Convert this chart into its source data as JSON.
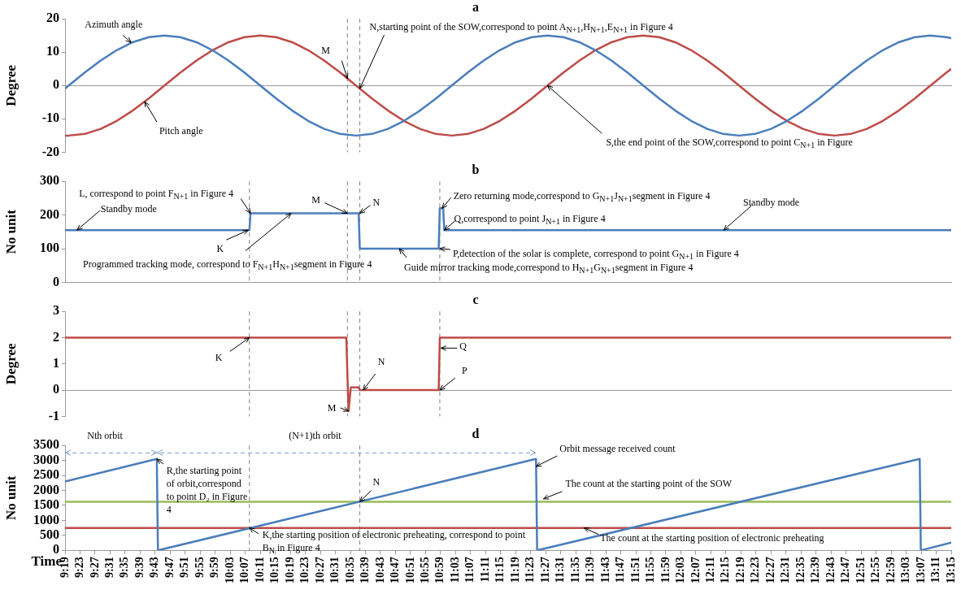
{
  "chart_data": [
    {
      "type": "line",
      "title": "a",
      "ylabel": "Degree",
      "xlim": [
        9.3167,
        13.25
      ],
      "ylim": [
        -20,
        20
      ],
      "yticks": [
        -20,
        -10,
        0,
        10,
        20
      ],
      "tick_labels": "y",
      "x": [
        9.317,
        9.333,
        9.404,
        9.475,
        9.546,
        9.617,
        9.688,
        9.758,
        9.829,
        9.9,
        9.971,
        10.042,
        10.113,
        10.183,
        10.254,
        10.325,
        10.396,
        10.467,
        10.538,
        10.608,
        10.679,
        10.75,
        10.821,
        10.892,
        10.963,
        11.033,
        11.104,
        11.175,
        11.246,
        11.317,
        11.388,
        11.458,
        11.529,
        11.6,
        11.671,
        11.742,
        11.813,
        11.883,
        11.954,
        12.025,
        12.096,
        12.167,
        12.238,
        12.308,
        12.379,
        12.45,
        12.521,
        12.592,
        12.663,
        12.733,
        12.804,
        12.875,
        12.946,
        13.017,
        13.088,
        13.158,
        13.229,
        13.25
      ],
      "series": [
        {
          "color": "#4a7ebb",
          "values": [
            -0.9,
            0,
            3.9,
            7.5,
            10.6,
            13,
            14.5,
            15,
            14.5,
            13,
            10.6,
            7.5,
            3.9,
            0,
            -3.9,
            -7.5,
            -10.6,
            -13,
            -14.5,
            -15,
            -14.5,
            -13,
            -10.6,
            -7.5,
            -3.9,
            0,
            3.9,
            7.5,
            10.6,
            13,
            14.5,
            15,
            14.5,
            13,
            10.6,
            7.5,
            3.9,
            0,
            -3.9,
            -7.5,
            -10.6,
            -13,
            -14.5,
            -15,
            -14.5,
            -13,
            -10.6,
            -7.5,
            -3.9,
            0,
            3.9,
            7.5,
            10.6,
            13,
            14.5,
            15,
            14.5,
            14.2
          ]
        },
        {
          "color": "#be4b48",
          "values": [
            -15,
            -15,
            -14.5,
            -13,
            -10.6,
            -7.5,
            -3.9,
            0,
            3.9,
            7.5,
            10.6,
            13,
            14.5,
            15,
            14.5,
            13,
            10.6,
            7.5,
            3.9,
            0,
            -3.9,
            -7.5,
            -10.6,
            -13,
            -14.5,
            -15,
            -14.5,
            -13,
            -10.6,
            -7.5,
            -3.9,
            0,
            3.9,
            7.5,
            10.6,
            13,
            14.5,
            15,
            14.5,
            13,
            10.6,
            7.5,
            3.9,
            0,
            -3.9,
            -7.5,
            -10.6,
            -13,
            -14.5,
            -15,
            -14.5,
            -13,
            -10.6,
            -7.5,
            -3.9,
            0,
            3.9,
            5
          ]
        }
      ],
      "ref_lines": [
        {
          "axis": "x",
          "value": 10.57,
          "color": "#808080",
          "line_style": "dashed"
        },
        {
          "axis": "x",
          "value": 10.625,
          "color": "#808080",
          "line_style": "dashed"
        }
      ],
      "annotations": [
        {
          "text": "Azimuth angle",
          "x": 9.61,
          "y": 12.9
        },
        {
          "text": "Pitch angle",
          "x": 9.67,
          "y": -4.8
        },
        {
          "text": "M",
          "x": 10.57,
          "y": 2.1
        },
        {
          "text": "N,starting point of the SOW,correspond to point A$_{N+1}$,H$_{N+1}$,E$_{N+1}$ in Figure 4",
          "x": 10.625,
          "y": -0.9
        },
        {
          "text": "S,the end point of the SOW,correspond to point C$_{N+1}$ in Figure",
          "x": 11.458,
          "y": 0
        }
      ]
    },
    {
      "type": "line",
      "title": "b",
      "ylabel": "No unit",
      "xlim": [
        9.3167,
        13.25
      ],
      "ylim": [
        0,
        300
      ],
      "yticks": [
        0,
        100,
        200,
        300
      ],
      "tick_labels": "y",
      "color": "#4a7ebb",
      "x": [
        9.317,
        10.135,
        10.14,
        10.62,
        10.625,
        10.975,
        10.98,
        10.995,
        11.0,
        13.25
      ],
      "values": [
        155,
        155,
        205,
        205,
        100,
        100,
        220,
        220,
        155,
        155
      ],
      "ref_lines": [
        {
          "axis": "x",
          "value": 10.135,
          "color": "#808080",
          "line_style": "dashed"
        },
        {
          "axis": "x",
          "value": 10.57,
          "color": "#808080",
          "line_style": "dashed"
        },
        {
          "axis": "x",
          "value": 10.625,
          "color": "#808080",
          "line_style": "dashed"
        },
        {
          "axis": "x",
          "value": 10.98,
          "color": "#808080",
          "line_style": "dashed"
        }
      ],
      "annotations": [
        {
          "text": "L, correspond to point F$_{N+1}$ in Figure 4",
          "x": 10.14,
          "y": 205
        },
        {
          "text": "Standby mode",
          "x": 9.37,
          "y": 155
        },
        {
          "text": "K",
          "x": 10.13,
          "y": 155
        },
        {
          "text": "Programmed tracking mode, correspond to F$_{N+1}$H$_{N+1}$segment in Figure 4",
          "x": 10.32,
          "y": 205
        },
        {
          "text": "M",
          "x": 10.57,
          "y": 205
        },
        {
          "text": "N",
          "x": 10.625,
          "y": 205
        },
        {
          "text": "Zero returning mode,correspond to G$_{N+1}$J$_{N+1}$segment in Figure 4",
          "x": 10.99,
          "y": 220
        },
        {
          "text": "Q,correspond to point J$_{N+1}$ in Figure 4",
          "x": 11.0,
          "y": 155
        },
        {
          "text": "P,detection of the solar is complete, correspond to point G$_{N+1}$ in Figure 4",
          "x": 10.98,
          "y": 100
        },
        {
          "text": "Guide mirror tracking mode,correspond to H$_{N+1}$G$_{N+1}$segment in Figure 4",
          "x": 10.8,
          "y": 100
        },
        {
          "text": "Standby mode",
          "x": 12.24,
          "y": 155
        }
      ]
    },
    {
      "type": "line",
      "title": "c",
      "ylabel": "Degree",
      "xlim": [
        9.3167,
        13.25
      ],
      "ylim": [
        -1,
        3
      ],
      "yticks": [
        -1,
        0,
        1,
        2,
        3
      ],
      "tick_labels": "y",
      "color": "#be4b48",
      "x": [
        9.317,
        10.565,
        10.575,
        10.585,
        10.62,
        10.625,
        10.975,
        10.98,
        13.25
      ],
      "values": [
        2,
        2,
        -0.8,
        0.1,
        0.1,
        0,
        0,
        2,
        2
      ],
      "ref_lines": [
        {
          "axis": "x",
          "value": 10.135,
          "color": "#808080",
          "line_style": "dashed"
        },
        {
          "axis": "x",
          "value": 10.57,
          "color": "#808080",
          "line_style": "dashed"
        },
        {
          "axis": "x",
          "value": 10.625,
          "color": "#808080",
          "line_style": "dashed"
        },
        {
          "axis": "x",
          "value": 10.98,
          "color": "#808080",
          "line_style": "dashed"
        }
      ],
      "annotations": [
        {
          "text": "K",
          "x": 10.135,
          "y": 2
        },
        {
          "text": "M",
          "x": 10.575,
          "y": -0.8
        },
        {
          "text": "N",
          "x": 10.64,
          "y": 0
        },
        {
          "text": "Q",
          "x": 10.985,
          "y": 1.6
        },
        {
          "text": "P",
          "x": 10.98,
          "y": 0
        }
      ]
    },
    {
      "type": "line",
      "title": "d",
      "xlabel": "Time",
      "ylabel": "No unit",
      "xlim": [
        9.3167,
        13.25
      ],
      "ylim": [
        0,
        3500
      ],
      "yticks": [
        0,
        500,
        1000,
        1500,
        2000,
        2500,
        3000,
        3500
      ],
      "series": [
        {
          "color": "#4a7ebb",
          "x": [
            9.317,
            9.724,
            9.729,
            11.407,
            11.412,
            13.11,
            13.115,
            13.25
          ],
          "values": [
            2300,
            3050,
            0,
            3050,
            0,
            3050,
            0,
            260
          ]
        },
        {
          "color": "#7f9cc8",
          "line_style": "dashed",
          "marker": "cross",
          "x": [
            9.317,
            9.724,
            11.407
          ],
          "values": [
            3250,
            3250,
            3250
          ]
        }
      ],
      "xticks": [
        {
          "value": 9.3167,
          "label": "9:19"
        },
        {
          "value": 9.3833,
          "label": "9:23"
        },
        {
          "value": 9.45,
          "label": "9:27"
        },
        {
          "value": 9.5167,
          "label": "9:31"
        },
        {
          "value": 9.5833,
          "label": "9:35"
        },
        {
          "value": 9.65,
          "label": "9:39"
        },
        {
          "value": 9.7167,
          "label": "9:43"
        },
        {
          "value": 9.7833,
          "label": "9:47"
        },
        {
          "value": 9.85,
          "label": "9:51"
        },
        {
          "value": 9.9167,
          "label": "9:55"
        },
        {
          "value": 9.9833,
          "label": "9:59"
        },
        {
          "value": 10.05,
          "label": "10:03"
        },
        {
          "value": 10.1167,
          "label": "10:07"
        },
        {
          "value": 10.1833,
          "label": "10:11"
        },
        {
          "value": 10.25,
          "label": "10:15"
        },
        {
          "value": 10.3167,
          "label": "10:19"
        },
        {
          "value": 10.3833,
          "label": "10:23"
        },
        {
          "value": 10.45,
          "label": "10:27"
        },
        {
          "value": 10.5167,
          "label": "10:31"
        },
        {
          "value": 10.5833,
          "label": "10:35"
        },
        {
          "value": 10.65,
          "label": "10:39"
        },
        {
          "value": 10.7167,
          "label": "10:43"
        },
        {
          "value": 10.7833,
          "label": "10:47"
        },
        {
          "value": 10.85,
          "label": "10:51"
        },
        {
          "value": 10.9167,
          "label": "10:55"
        },
        {
          "value": 10.9833,
          "label": "10:59"
        },
        {
          "value": 11.05,
          "label": "11:03"
        },
        {
          "value": 11.1167,
          "label": "11:07"
        },
        {
          "value": 11.1833,
          "label": "11:11"
        },
        {
          "value": 11.25,
          "label": "11:15"
        },
        {
          "value": 11.3167,
          "label": "11:19"
        },
        {
          "value": 11.3833,
          "label": "11:23"
        },
        {
          "value": 11.45,
          "label": "11:27"
        },
        {
          "value": 11.5167,
          "label": "11:31"
        },
        {
          "value": 11.5833,
          "label": "11:35"
        },
        {
          "value": 11.65,
          "label": "11:39"
        },
        {
          "value": 11.7167,
          "label": "11:43"
        },
        {
          "value": 11.7833,
          "label": "11:47"
        },
        {
          "value": 11.85,
          "label": "11:51"
        },
        {
          "value": 11.9167,
          "label": "11:55"
        },
        {
          "value": 11.9833,
          "label": "11:59"
        },
        {
          "value": 12.05,
          "label": "12:03"
        },
        {
          "value": 12.1167,
          "label": "12:07"
        },
        {
          "value": 12.1833,
          "label": "12:11"
        },
        {
          "value": 12.25,
          "label": "12:15"
        },
        {
          "value": 12.3167,
          "label": "12:19"
        },
        {
          "value": 12.3833,
          "label": "12:23"
        },
        {
          "value": 12.45,
          "label": "12:27"
        },
        {
          "value": 12.5167,
          "label": "12:31"
        },
        {
          "value": 12.5833,
          "label": "12:35"
        },
        {
          "value": 12.65,
          "label": "12:39"
        },
        {
          "value": 12.7167,
          "label": "12:43"
        },
        {
          "value": 12.7833,
          "label": "12:47"
        },
        {
          "value": 12.85,
          "label": "12:51"
        },
        {
          "value": 12.9167,
          "label": "12:55"
        },
        {
          "value": 12.9833,
          "label": "12:59"
        },
        {
          "value": 13.05,
          "label": "13:03"
        },
        {
          "value": 13.1167,
          "label": "13:07"
        },
        {
          "value": 13.1833,
          "label": "13:11"
        },
        {
          "value": 13.25,
          "label": "13:15"
        }
      ],
      "ref_lines": [
        {
          "axis": "x",
          "value": 10.135,
          "color": "#808080",
          "line_style": "dashed"
        },
        {
          "axis": "x",
          "value": 10.625,
          "color": "#808080",
          "line_style": "dashed"
        },
        {
          "axis": "y",
          "value": 1620,
          "color": "#9bbb59",
          "line_style": "solid"
        },
        {
          "axis": "y",
          "value": 750,
          "color": "#be4b48",
          "line_style": "solid"
        }
      ],
      "annotations": [
        "Nth orbit",
        "(N+1)th orbit",
        {
          "text": "R,the starting point of orbit,correspond to point D₂ in Figure 4",
          "x": 9.724,
          "y": 3050
        },
        {
          "text": "N",
          "x": 10.625,
          "y": 1620
        },
        {
          "text": "K,the starting position of electronic preheating, correspond to point B$_{N}$ in Figure 4",
          "x": 10.135,
          "y": 750
        },
        {
          "text": "Orbit message received count",
          "x": 11.407,
          "y": 2800
        },
        {
          "text": "The count at the starting point of the SOW",
          "x": 11.44,
          "y": 1720
        },
        {
          "text": "The count at the starting position of electronic preheating",
          "x": 11.62,
          "y": 750
        }
      ]
    }
  ]
}
